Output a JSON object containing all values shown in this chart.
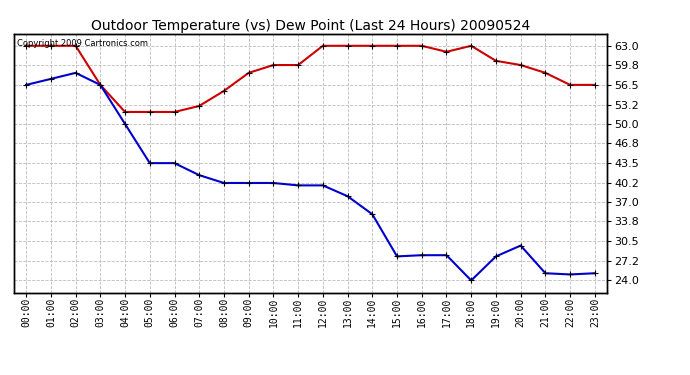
{
  "title": "Outdoor Temperature (vs) Dew Point (Last 24 Hours) 20090524",
  "copyright": "Copyright 2009 Cartronics.com",
  "x_labels": [
    "00:00",
    "01:00",
    "02:00",
    "03:00",
    "04:00",
    "05:00",
    "06:00",
    "07:00",
    "08:00",
    "09:00",
    "10:00",
    "11:00",
    "12:00",
    "13:00",
    "14:00",
    "15:00",
    "16:00",
    "17:00",
    "18:00",
    "19:00",
    "20:00",
    "21:00",
    "22:00",
    "23:00"
  ],
  "temp_data": [
    63.0,
    63.0,
    63.0,
    56.5,
    52.0,
    52.0,
    52.0,
    53.0,
    55.5,
    58.5,
    59.8,
    59.8,
    63.0,
    63.0,
    63.0,
    63.0,
    63.0,
    62.0,
    63.0,
    60.5,
    59.8,
    58.5,
    56.5,
    56.5
  ],
  "dew_data": [
    56.5,
    57.5,
    58.5,
    56.5,
    50.0,
    43.5,
    43.5,
    41.5,
    40.2,
    40.2,
    40.2,
    39.8,
    39.8,
    38.0,
    35.0,
    28.0,
    28.2,
    28.2,
    24.0,
    28.0,
    29.8,
    25.2,
    25.0,
    25.2
  ],
  "temp_color": "#cc0000",
  "dew_color": "#0000cc",
  "bg_color": "#ffffff",
  "grid_color": "#bbbbbb",
  "ylim_min": 22.0,
  "ylim_max": 65.0,
  "yticks": [
    24.0,
    27.2,
    30.5,
    33.8,
    37.0,
    40.2,
    43.5,
    46.8,
    50.0,
    53.2,
    56.5,
    59.8,
    63.0
  ],
  "title_fontsize": 10,
  "copyright_fontsize": 6,
  "linewidth": 1.5,
  "markersize": 5
}
